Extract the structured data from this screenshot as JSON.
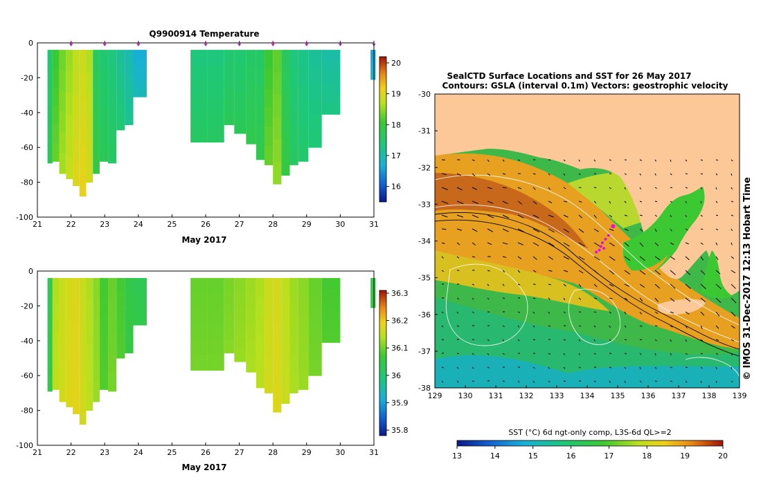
{
  "chart_data": [
    {
      "type": "heatmap",
      "title": "Q9900914  Temperature",
      "xlabel": "May 2017",
      "ylabel": "",
      "xlim": [
        21,
        31
      ],
      "ylim": [
        -100,
        0
      ],
      "x_ticks": [
        "21",
        "22",
        "23",
        "24",
        "25",
        "26",
        "27",
        "28",
        "29",
        "30",
        "31"
      ],
      "y_ticks": [
        "0",
        "-20",
        "-40",
        "-60",
        "-80",
        "-100"
      ],
      "colorbar": {
        "min": 15.5,
        "max": 20.2,
        "ticks": [
          "20",
          "19",
          "18",
          "17",
          "16"
        ],
        "tick_values": [
          20,
          19,
          18,
          17,
          16
        ]
      },
      "profile_markers": [
        22,
        23,
        24,
        26,
        27,
        28,
        29,
        30,
        31
      ],
      "profiles": [
        {
          "x": 21.3,
          "w": 0.15,
          "depth": 69,
          "value": 17.6
        },
        {
          "x": 21.45,
          "w": 0.2,
          "depth": 68,
          "value": 18.2
        },
        {
          "x": 21.65,
          "w": 0.2,
          "depth": 75,
          "value": 18.5
        },
        {
          "x": 21.85,
          "w": 0.2,
          "depth": 78,
          "value": 18.7
        },
        {
          "x": 22.05,
          "w": 0.2,
          "depth": 82,
          "value": 18.9
        },
        {
          "x": 22.25,
          "w": 0.2,
          "depth": 88,
          "value": 19.0
        },
        {
          "x": 22.45,
          "w": 0.2,
          "depth": 80,
          "value": 18.8
        },
        {
          "x": 22.65,
          "w": 0.2,
          "depth": 75,
          "value": 17.8
        },
        {
          "x": 22.85,
          "w": 0.25,
          "depth": 68,
          "value": 17.6
        },
        {
          "x": 23.1,
          "w": 0.25,
          "depth": 69,
          "value": 17.5
        },
        {
          "x": 23.35,
          "w": 0.25,
          "depth": 50,
          "value": 17.3
        },
        {
          "x": 23.6,
          "w": 0.25,
          "depth": 47,
          "value": 17.1
        },
        {
          "x": 23.85,
          "w": 0.4,
          "depth": 31,
          "value": 16.8
        },
        {
          "x": 25.55,
          "w": 0.5,
          "depth": 57,
          "value": 17.5
        },
        {
          "x": 26.05,
          "w": 0.5,
          "depth": 57,
          "value": 17.5
        },
        {
          "x": 26.55,
          "w": 0.3,
          "depth": 47,
          "value": 17.6
        },
        {
          "x": 26.85,
          "w": 0.35,
          "depth": 52,
          "value": 17.6
        },
        {
          "x": 27.2,
          "w": 0.3,
          "depth": 58,
          "value": 17.7
        },
        {
          "x": 27.5,
          "w": 0.25,
          "depth": 67,
          "value": 17.7
        },
        {
          "x": 27.75,
          "w": 0.25,
          "depth": 70,
          "value": 18.2
        },
        {
          "x": 28.0,
          "w": 0.25,
          "depth": 81,
          "value": 18.4
        },
        {
          "x": 28.25,
          "w": 0.25,
          "depth": 76,
          "value": 17.8
        },
        {
          "x": 28.5,
          "w": 0.25,
          "depth": 70,
          "value": 17.5
        },
        {
          "x": 28.75,
          "w": 0.3,
          "depth": 68,
          "value": 17.4
        },
        {
          "x": 29.05,
          "w": 0.4,
          "depth": 60,
          "value": 17.3
        },
        {
          "x": 29.45,
          "w": 0.55,
          "depth": 41,
          "value": 17.2
        },
        {
          "x": 30.9,
          "w": 0.15,
          "depth": 21,
          "value": 16.7
        }
      ]
    },
    {
      "type": "heatmap",
      "title": "",
      "xlabel": "May 2017",
      "ylabel": "",
      "xlim": [
        21,
        31
      ],
      "ylim": [
        -100,
        0
      ],
      "x_ticks": [
        "21",
        "22",
        "23",
        "24",
        "25",
        "26",
        "27",
        "28",
        "29",
        "30",
        "31"
      ],
      "y_ticks": [
        "0",
        "-20",
        "-40",
        "-60",
        "-80",
        "-100"
      ],
      "colorbar": {
        "min": 35.78,
        "max": 36.31,
        "ticks": [
          "36.3",
          "36.2",
          "36.1",
          "36",
          "35.9",
          "35.8"
        ],
        "tick_values": [
          36.3,
          36.2,
          36.1,
          36.0,
          35.9,
          35.8
        ]
      },
      "profiles": [
        {
          "x": 21.3,
          "w": 0.15,
          "depth": 69,
          "value": 36.04
        },
        {
          "x": 21.45,
          "w": 0.2,
          "depth": 68,
          "value": 36.14
        },
        {
          "x": 21.65,
          "w": 0.2,
          "depth": 75,
          "value": 36.16
        },
        {
          "x": 21.85,
          "w": 0.2,
          "depth": 78,
          "value": 36.17
        },
        {
          "x": 22.05,
          "w": 0.2,
          "depth": 82,
          "value": 36.18
        },
        {
          "x": 22.25,
          "w": 0.2,
          "depth": 88,
          "value": 36.16
        },
        {
          "x": 22.45,
          "w": 0.2,
          "depth": 80,
          "value": 36.14
        },
        {
          "x": 22.65,
          "w": 0.2,
          "depth": 75,
          "value": 36.12
        },
        {
          "x": 22.85,
          "w": 0.25,
          "depth": 68,
          "value": 36.08
        },
        {
          "x": 23.1,
          "w": 0.25,
          "depth": 69,
          "value": 36.1
        },
        {
          "x": 23.35,
          "w": 0.25,
          "depth": 50,
          "value": 36.08
        },
        {
          "x": 23.6,
          "w": 0.25,
          "depth": 47,
          "value": 36.05
        },
        {
          "x": 23.85,
          "w": 0.4,
          "depth": 31,
          "value": 36.04
        },
        {
          "x": 25.55,
          "w": 0.5,
          "depth": 57,
          "value": 36.1
        },
        {
          "x": 26.05,
          "w": 0.5,
          "depth": 57,
          "value": 36.1
        },
        {
          "x": 26.55,
          "w": 0.3,
          "depth": 47,
          "value": 36.11
        },
        {
          "x": 26.85,
          "w": 0.35,
          "depth": 52,
          "value": 36.12
        },
        {
          "x": 27.2,
          "w": 0.3,
          "depth": 58,
          "value": 36.13
        },
        {
          "x": 27.5,
          "w": 0.25,
          "depth": 67,
          "value": 36.14
        },
        {
          "x": 27.75,
          "w": 0.25,
          "depth": 70,
          "value": 36.16
        },
        {
          "x": 28.0,
          "w": 0.25,
          "depth": 81,
          "value": 36.17
        },
        {
          "x": 28.25,
          "w": 0.25,
          "depth": 76,
          "value": 36.15
        },
        {
          "x": 28.5,
          "w": 0.25,
          "depth": 70,
          "value": 36.13
        },
        {
          "x": 28.75,
          "w": 0.3,
          "depth": 68,
          "value": 36.12
        },
        {
          "x": 29.05,
          "w": 0.4,
          "depth": 60,
          "value": 36.1
        },
        {
          "x": 29.45,
          "w": 0.55,
          "depth": 41,
          "value": 36.08
        },
        {
          "x": 30.9,
          "w": 0.15,
          "depth": 21,
          "value": 36.05
        }
      ]
    },
    {
      "type": "heatmap",
      "title": "SealCTD Surface Locations and SST for 26 May 2017",
      "subtitle": "Contours: GSLA (interval 0.1m) Vectors: geostrophic velocity",
      "xlabel": "",
      "ylabel": "",
      "xlim": [
        129,
        139
      ],
      "ylim": [
        -38,
        -30
      ],
      "x_ticks": [
        "129",
        "130",
        "131",
        "132",
        "133",
        "134",
        "135",
        "136",
        "137",
        "138",
        "139"
      ],
      "y_ticks": [
        "-30",
        "-31",
        "-32",
        "-33",
        "-34",
        "-35",
        "-36",
        "-37",
        "-38"
      ],
      "side_label": "© IMOS 31-Dec-2017 12:13 Hobart Time",
      "colorbar": {
        "label": "SST (°C) 6d ngt-only comp, L3S-6d QL>=2",
        "min": 13,
        "max": 20,
        "ticks": [
          "13",
          "14",
          "15",
          "16",
          "17",
          "18",
          "19",
          "20"
        ]
      },
      "seal_locations": [
        [
          134.85,
          -33.6
        ],
        [
          134.7,
          -33.85
        ],
        [
          134.6,
          -33.95
        ],
        [
          134.5,
          -34.05
        ],
        [
          134.45,
          -34.15
        ],
        [
          134.4,
          -34.25
        ],
        [
          134.3,
          -34.3
        ],
        [
          134.55,
          -34.2
        ]
      ]
    }
  ]
}
